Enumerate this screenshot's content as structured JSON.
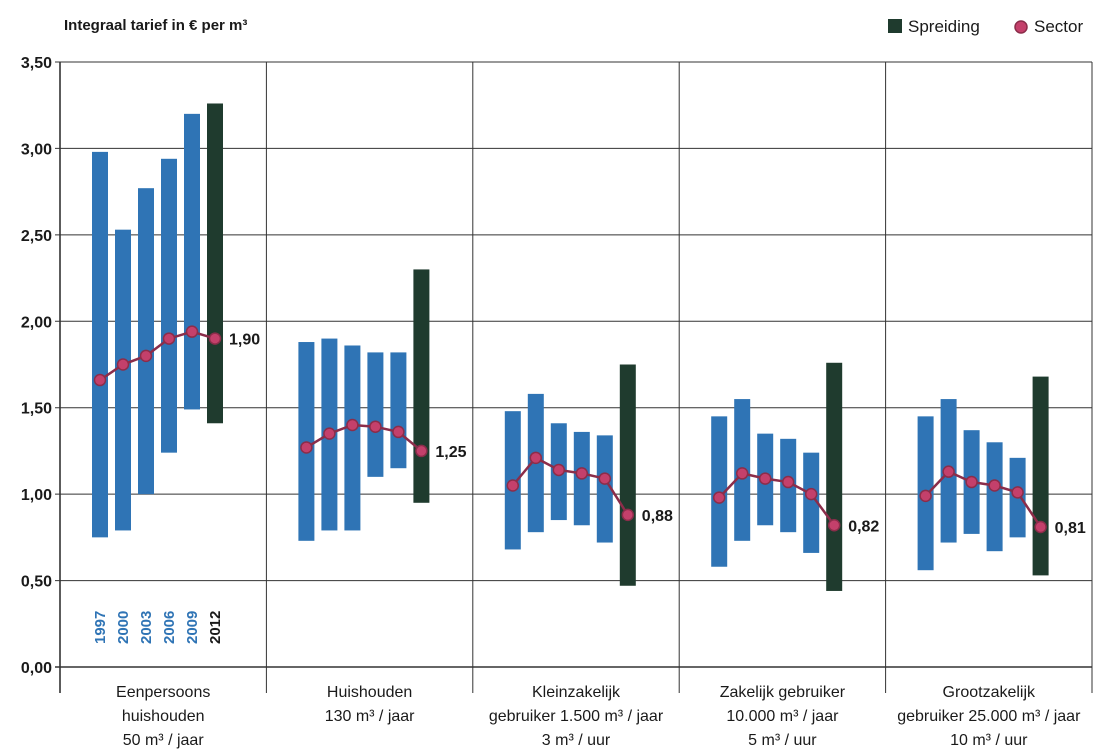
{
  "chart_data": {
    "type": "bar",
    "title": "Integraal tarief in € per m³",
    "ylim": [
      0,
      3.5
    ],
    "ytick_labels": [
      "0,00",
      "0,50",
      "1,00",
      "1,50",
      "2,00",
      "2,50",
      "3,00",
      "3,50"
    ],
    "grid": true,
    "legend": {
      "placement": "top-right",
      "spreiding": "Spreiding",
      "sector": "Sector"
    },
    "years": [
      "1997",
      "2000",
      "2003",
      "2006",
      "2009",
      "2012"
    ],
    "colors": {
      "range_bar": "#2f74b5",
      "range_bar_2012": "#1f3b2e",
      "sector_line": "#8b2d4a",
      "sector_marker": "#c4406b",
      "grid": "#333333",
      "year_label": "#2f74b5",
      "year_label_2012": "#1a1a1a"
    },
    "categories": [
      {
        "label": [
          "Eenpersoons",
          "huishouden",
          "50 m³ / jaar"
        ],
        "ranges": [
          [
            0.75,
            2.98
          ],
          [
            0.79,
            2.53
          ],
          [
            1.0,
            2.77
          ],
          [
            1.24,
            2.94
          ],
          [
            1.49,
            3.2
          ],
          [
            1.41,
            3.26
          ]
        ],
        "sector": [
          1.66,
          1.75,
          1.8,
          1.9,
          1.94,
          1.9
        ],
        "value_label": "1,90"
      },
      {
        "label": [
          "Huishouden",
          "130 m³ / jaar"
        ],
        "ranges": [
          [
            0.73,
            1.88
          ],
          [
            0.79,
            1.9
          ],
          [
            0.79,
            1.86
          ],
          [
            1.1,
            1.82
          ],
          [
            1.15,
            1.82
          ],
          [
            0.95,
            2.3
          ]
        ],
        "sector": [
          1.27,
          1.35,
          1.4,
          1.39,
          1.36,
          1.25
        ],
        "value_label": "1,25"
      },
      {
        "label": [
          "Kleinzakelijk",
          "gebruiker 1.500 m³ / jaar",
          "3 m³ / uur"
        ],
        "ranges": [
          [
            0.68,
            1.48
          ],
          [
            0.78,
            1.58
          ],
          [
            0.85,
            1.41
          ],
          [
            0.82,
            1.36
          ],
          [
            0.72,
            1.34
          ],
          [
            0.47,
            1.75
          ]
        ],
        "sector": [
          1.05,
          1.21,
          1.14,
          1.12,
          1.09,
          0.88
        ],
        "value_label": "0,88"
      },
      {
        "label": [
          "Zakelijk gebruiker",
          "10.000 m³ / jaar",
          "5 m³ / uur"
        ],
        "ranges": [
          [
            0.58,
            1.45
          ],
          [
            0.73,
            1.55
          ],
          [
            0.82,
            1.35
          ],
          [
            0.78,
            1.32
          ],
          [
            0.66,
            1.24
          ],
          [
            0.44,
            1.76
          ]
        ],
        "sector": [
          0.98,
          1.12,
          1.09,
          1.07,
          1.0,
          0.82
        ],
        "value_label": "0,82"
      },
      {
        "label": [
          "Grootzakelijk",
          "gebruiker 25.000 m³ / jaar",
          "10 m³ / uur"
        ],
        "ranges": [
          [
            0.56,
            1.45
          ],
          [
            0.72,
            1.55
          ],
          [
            0.77,
            1.37
          ],
          [
            0.67,
            1.3
          ],
          [
            0.75,
            1.21
          ],
          [
            0.53,
            1.68
          ]
        ],
        "sector": [
          0.99,
          1.13,
          1.07,
          1.05,
          1.01,
          0.81
        ],
        "value_label": "0,81"
      }
    ]
  }
}
